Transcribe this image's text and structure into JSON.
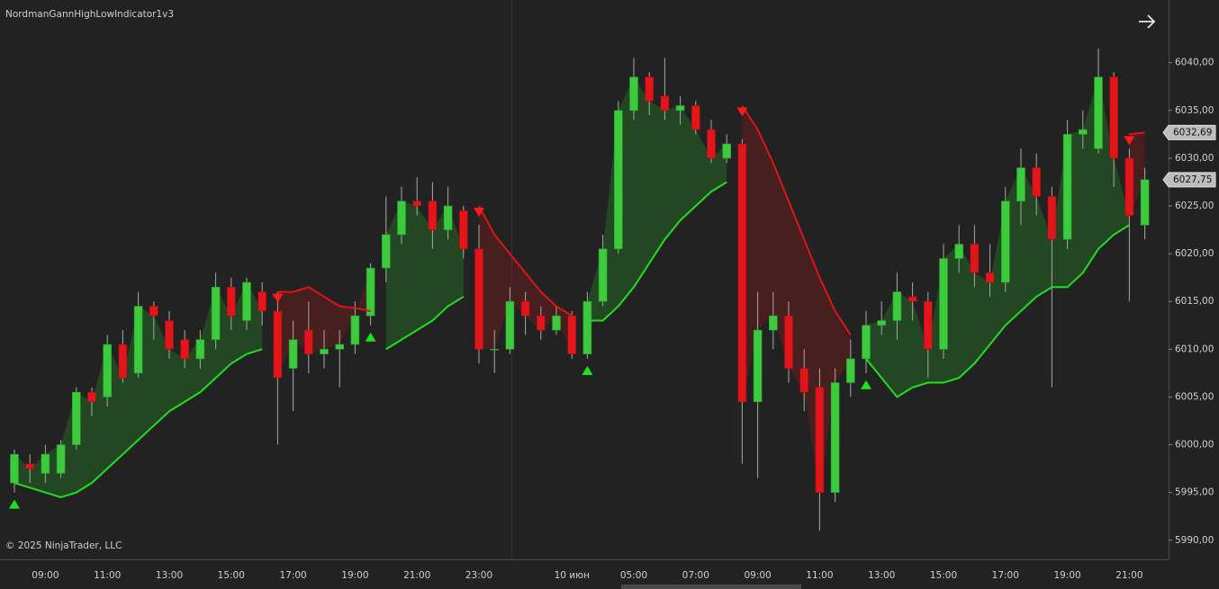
{
  "chart_data": {
    "type": "candlestick",
    "title": "NordmanGannHighLowIndicator1v3",
    "annotation": "© 2025 NinjaTrader, LLC",
    "up_color": "#3ccb3c",
    "down_color": "#e2161a",
    "wick_color": "#a8a8a8",
    "open": [
      5996,
      5998,
      5997,
      5997,
      6000,
      6005.5,
      6005,
      6010.5,
      6007.5,
      6014.5,
      6013,
      6011,
      6009,
      6011,
      6016.5,
      6013,
      6016,
      6014,
      6008,
      6012,
      6009.5,
      6010,
      6010.5,
      6013.5,
      6018.5,
      6022,
      6025.5,
      6025.5,
      6022.5,
      6024.5,
      6020.5,
      6010,
      6010,
      6015,
      6013.5,
      6012,
      6013.5,
      6009.5,
      6015,
      6020.5,
      6035,
      6038.5,
      6036.5,
      6035,
      6035.5,
      6033,
      6030,
      6031.5,
      6004.5,
      6012,
      6013.5,
      6008,
      6006,
      5995,
      6006.5,
      6009,
      6012.5,
      6013,
      6015.5,
      6015,
      6010,
      6019.5,
      6021,
      6018,
      6017,
      6025.5,
      6029,
      6026,
      6021.5,
      6032.5,
      6031,
      6038.5,
      6030,
      6023
    ],
    "high": [
      5999.5,
      5999,
      6000,
      6000.5,
      6006,
      6006,
      6011.5,
      6012,
      6016,
      6015,
      6014,
      6012,
      6012,
      6018,
      6017.5,
      6017.5,
      6017,
      6016,
      6013,
      6015,
      6012,
      6012,
      6015,
      6019,
      6026,
      6027,
      6028,
      6027.5,
      6027,
      6025,
      6023,
      6012,
      6016.5,
      6016,
      6014.5,
      6014.5,
      6014,
      6016,
      6022,
      6036,
      6040.5,
      6039,
      6040.5,
      6036.5,
      6036,
      6034,
      6032.5,
      6032,
      6016,
      6016,
      6015,
      6010,
      6008,
      6008,
      6011,
      6014,
      6015,
      6018,
      6017,
      6016,
      6021,
      6023,
      6023,
      6021,
      6027,
      6031,
      6030.5,
      6027,
      6034,
      6035,
      6041.5,
      6039,
      6031,
      6029
    ],
    "low": [
      5995,
      5996,
      5996,
      5996.5,
      5999.5,
      6003,
      6004,
      6006.5,
      6007,
      6011,
      6009,
      6008,
      6008,
      6010,
      6012,
      6012,
      6012.5,
      6000,
      6003.5,
      6007.5,
      6008,
      6006,
      6009.5,
      6012.5,
      6017,
      6021,
      6024,
      6020.5,
      6021.5,
      6019.5,
      6008.5,
      6007.5,
      6009.5,
      6011.5,
      6011,
      6011.5,
      6009,
      6009,
      6014.5,
      6020,
      6034,
      6034.5,
      6034,
      6033.5,
      6032.5,
      6029.5,
      6029.5,
      5998,
      5996.5,
      6010,
      6006.5,
      6003.5,
      5991,
      5994,
      6005,
      6007.5,
      6011.5,
      6011,
      6013,
      6007,
      6009,
      6018,
      6016.5,
      6015.5,
      6016,
      6023,
      6024,
      6006,
      6020.5,
      6031,
      6030.5,
      6027,
      6015,
      6021.5
    ],
    "close": [
      5999,
      5997.5,
      5999,
      6000,
      6005.5,
      6004.5,
      6010.5,
      6007,
      6014.5,
      6013.5,
      6010,
      6009,
      6011,
      6016.5,
      6013.5,
      6017,
      6014,
      6007,
      6011,
      6009.5,
      6010,
      6010.5,
      6013.5,
      6018.5,
      6022,
      6025.5,
      6025,
      6022.5,
      6025,
      6020.5,
      6010,
      6010,
      6015,
      6013.5,
      6012,
      6013.5,
      6009.5,
      6015,
      6020.5,
      6035,
      6038.5,
      6036,
      6035,
      6035.5,
      6033,
      6030,
      6031.5,
      6004.5,
      6012,
      6013.5,
      6008,
      6005.5,
      5995,
      6006.5,
      6009,
      6012.5,
      6013,
      6016,
      6015,
      6010,
      6019.5,
      6021,
      6018,
      6017,
      6025.5,
      6029,
      6026,
      6021.5,
      6032.5,
      6033,
      6038.5,
      6030,
      6024,
      6027.75
    ],
    "series": [
      {
        "color": "#22dd22",
        "values": [
          5996,
          5995.5,
          5995,
          5994.5,
          5995,
          5996,
          5997.5,
          5999,
          6000.5,
          6002,
          6003.5,
          6004.5,
          6005.5,
          6007,
          6008.5,
          6009.5,
          6010,
          null,
          null,
          null,
          null,
          null,
          null,
          null,
          6010,
          6011,
          6012,
          6013,
          6014.5,
          6015.5,
          null,
          null,
          null,
          null,
          null,
          null,
          null,
          6013,
          6013,
          6014.5,
          6016.5,
          6019,
          6021.5,
          6023.5,
          6025,
          6026.5,
          6027.5,
          null,
          null,
          null,
          null,
          null,
          null,
          null,
          null,
          6009,
          6007,
          6005,
          6006,
          6006.5,
          6006.5,
          6007,
          6008.5,
          6010.5,
          6012.5,
          6014,
          6015.5,
          6016.5,
          6016.5,
          6018,
          6020.5,
          6022,
          6023,
          null
        ]
      },
      {
        "color": "#e01414",
        "values": [
          null,
          null,
          null,
          null,
          null,
          null,
          null,
          null,
          null,
          null,
          null,
          null,
          null,
          null,
          null,
          null,
          null,
          6016,
          6016,
          6016.5,
          6015.5,
          6014.5,
          6014.3,
          6014,
          null,
          null,
          null,
          null,
          null,
          null,
          6025,
          6022,
          6020,
          6018,
          6016,
          6014.5,
          6013.5,
          null,
          null,
          null,
          null,
          null,
          null,
          null,
          null,
          null,
          null,
          6035.5,
          6033,
          6029.5,
          6025.5,
          6021.5,
          6017.5,
          6014,
          6011.5,
          null,
          null,
          null,
          null,
          null,
          null,
          null,
          null,
          null,
          null,
          null,
          null,
          null,
          null,
          null,
          null,
          null,
          6032.5,
          6032.69
        ]
      }
    ],
    "buy_signals": [
      0,
      23,
      37,
      55
    ],
    "sell_signals": [
      17,
      30,
      47,
      72
    ],
    "buy_color": "#19e619",
    "sell_color": "#ff1a1a",
    "price_markers": [
      {
        "value": 6032.69,
        "label": "6032,69"
      },
      {
        "value": 6027.75,
        "label": "6027,75"
      }
    ],
    "ylim": [
      5988,
      6046
    ],
    "yticks": [
      {
        "value": 5990,
        "label": "5990,00"
      },
      {
        "value": 5995,
        "label": "5995,00"
      },
      {
        "value": 6000,
        "label": "6000,00"
      },
      {
        "value": 6005,
        "label": "6005,00"
      },
      {
        "value": 6010,
        "label": "6010,00"
      },
      {
        "value": 6015,
        "label": "6015,00"
      },
      {
        "value": 6020,
        "label": "6020,00"
      },
      {
        "value": 6025,
        "label": "6025,00"
      },
      {
        "value": 6030,
        "label": "6030,00"
      },
      {
        "value": 6035,
        "label": "6035,00"
      },
      {
        "value": 6040,
        "label": "6040,00"
      }
    ],
    "xticks": [
      {
        "value": 2,
        "label": "09:00"
      },
      {
        "value": 6,
        "label": "11:00"
      },
      {
        "value": 10,
        "label": "13:00"
      },
      {
        "value": 14,
        "label": "15:00"
      },
      {
        "value": 18,
        "label": "17:00"
      },
      {
        "value": 22,
        "label": "19:00"
      },
      {
        "value": 26,
        "label": "21:00"
      },
      {
        "value": 30,
        "label": "23:00"
      },
      {
        "value": 36,
        "label": "10 июн"
      },
      {
        "value": 40,
        "label": "05:00"
      },
      {
        "value": 44,
        "label": "07:00"
      },
      {
        "value": 48,
        "label": "09:00"
      },
      {
        "value": 52,
        "label": "11:00"
      },
      {
        "value": 56,
        "label": "13:00"
      },
      {
        "value": 60,
        "label": "15:00"
      },
      {
        "value": 64,
        "label": "17:00"
      },
      {
        "value": 68,
        "label": "19:00"
      },
      {
        "value": 72,
        "label": "21:00"
      }
    ],
    "grid": false
  }
}
